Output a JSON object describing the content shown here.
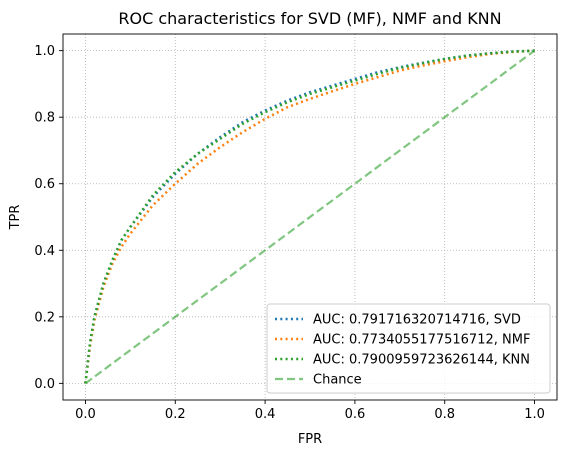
{
  "chart_data": {
    "type": "line",
    "title": "ROC characteristics for SVD (MF), NMF and KNN",
    "xlabel": "FPR",
    "ylabel": "TPR",
    "xlim": [
      -0.05,
      1.05
    ],
    "ylim": [
      -0.05,
      1.05
    ],
    "xticks": [
      0.0,
      0.2,
      0.4,
      0.6,
      0.8,
      1.0
    ],
    "yticks": [
      0.0,
      0.2,
      0.4,
      0.6,
      0.8,
      1.0
    ],
    "xtick_labels": [
      "0.0",
      "0.2",
      "0.4",
      "0.6",
      "0.8",
      "1.0"
    ],
    "ytick_labels": [
      "0.0",
      "0.2",
      "0.4",
      "0.6",
      "0.8",
      "1.0"
    ],
    "grid": true,
    "legend_position": "lower-right",
    "series": [
      {
        "name": "AUC: 0.791716320714716, SVD",
        "color": "#1f77b4",
        "style": "dotted",
        "x": [
          0.0,
          0.01,
          0.02,
          0.04,
          0.06,
          0.08,
          0.1,
          0.15,
          0.2,
          0.25,
          0.3,
          0.35,
          0.4,
          0.45,
          0.5,
          0.55,
          0.6,
          0.65,
          0.7,
          0.75,
          0.8,
          0.85,
          0.9,
          0.95,
          1.0
        ],
        "y": [
          0.0,
          0.12,
          0.2,
          0.3,
          0.37,
          0.43,
          0.47,
          0.56,
          0.63,
          0.69,
          0.74,
          0.785,
          0.82,
          0.85,
          0.875,
          0.895,
          0.915,
          0.935,
          0.95,
          0.963,
          0.975,
          0.985,
          0.992,
          0.997,
          1.0
        ]
      },
      {
        "name": "AUC: 0.7734055177516712, NMF",
        "color": "#ff7f0e",
        "style": "dotted",
        "x": [
          0.0,
          0.01,
          0.02,
          0.04,
          0.06,
          0.08,
          0.1,
          0.15,
          0.2,
          0.25,
          0.3,
          0.35,
          0.4,
          0.45,
          0.5,
          0.55,
          0.6,
          0.65,
          0.7,
          0.75,
          0.8,
          0.85,
          0.9,
          0.95,
          1.0
        ],
        "y": [
          0.0,
          0.11,
          0.19,
          0.29,
          0.36,
          0.41,
          0.45,
          0.535,
          0.6,
          0.66,
          0.71,
          0.755,
          0.795,
          0.83,
          0.855,
          0.878,
          0.9,
          0.92,
          0.94,
          0.955,
          0.968,
          0.98,
          0.99,
          0.996,
          1.0
        ]
      },
      {
        "name": "AUC: 0.7900959723626144, KNN",
        "color": "#2ca02c",
        "style": "dotted",
        "x": [
          0.0,
          0.01,
          0.02,
          0.04,
          0.06,
          0.08,
          0.1,
          0.15,
          0.2,
          0.25,
          0.3,
          0.35,
          0.4,
          0.45,
          0.5,
          0.55,
          0.6,
          0.65,
          0.7,
          0.75,
          0.8,
          0.85,
          0.9,
          0.95,
          1.0
        ],
        "y": [
          0.0,
          0.12,
          0.2,
          0.3,
          0.37,
          0.43,
          0.47,
          0.565,
          0.635,
          0.69,
          0.735,
          0.78,
          0.815,
          0.845,
          0.87,
          0.89,
          0.91,
          0.93,
          0.948,
          0.962,
          0.975,
          0.985,
          0.992,
          0.997,
          1.0
        ]
      },
      {
        "name": "Chance",
        "color": "#2ca02c",
        "style": "dashed",
        "x": [
          0.0,
          1.0
        ],
        "y": [
          0.0,
          1.0
        ]
      }
    ]
  }
}
